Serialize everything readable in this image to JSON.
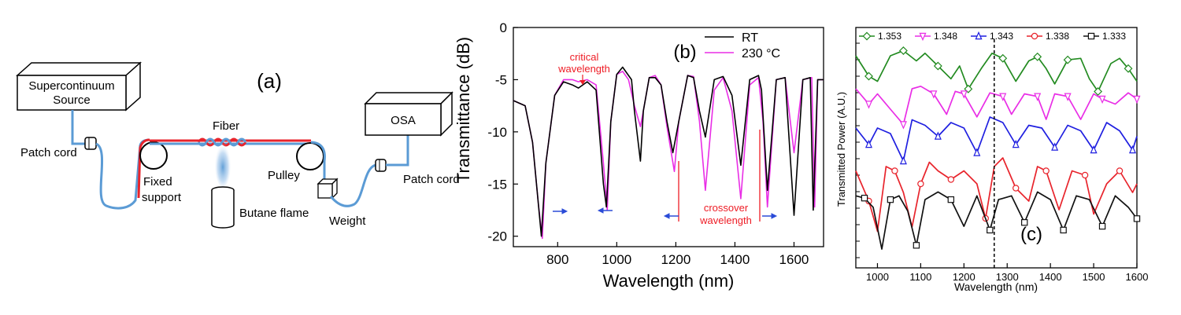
{
  "panel_a": {
    "panel_label": "(a)",
    "source_label_line1": "Supercontinuum",
    "source_label_line2": "Source",
    "patch_cord_left": "Patch cord",
    "fiber_label": "Fiber",
    "fixed_support_line1": "Fixed",
    "fixed_support_line2": "support",
    "flame_label": "Butane flame",
    "pulley_label": "Pulley",
    "weight_label": "Weight",
    "osa_label": "OSA",
    "patch_cord_right": "Patch cord",
    "colors": {
      "fiber_blue": "#5b9bd5",
      "fiber_red": "#e8242c"
    }
  },
  "panel_b": {
    "panel_label": "(b)",
    "annotation_critical_line1": "critical",
    "annotation_critical_line2": "wavelength",
    "annotation_crossover_line1": "crossover",
    "annotation_crossover_line2": "wavelength",
    "annotation_color": "#ee1c25",
    "arrow_color": "#2a4bd7"
  },
  "panel_c": {
    "panel_label": "(c)"
  },
  "chart_data": [
    {
      "type": "line",
      "panel": "b",
      "xlabel": "Wavelength (nm)",
      "ylabel": "Transmittance (dB)",
      "xlim": [
        650,
        1700
      ],
      "ylim": [
        -21,
        0
      ],
      "x_ticks": [
        "800",
        "1000",
        "1200",
        "1400",
        "1600"
      ],
      "x_tick_values": [
        800,
        1000,
        1200,
        1400,
        1600
      ],
      "y_ticks": [
        "0",
        "-5",
        "-10",
        "-15",
        "-20"
      ],
      "y_tick_values": [
        0,
        -5,
        -10,
        -15,
        -20
      ],
      "legend_position": "top-right",
      "series": [
        {
          "name": "RT",
          "color": "#000000",
          "x": [
            650,
            690,
            715,
            735,
            745,
            760,
            790,
            820,
            850,
            870,
            900,
            930,
            955,
            965,
            980,
            1000,
            1020,
            1050,
            1060,
            1080,
            1090,
            1110,
            1130,
            1150,
            1170,
            1190,
            1210,
            1240,
            1260,
            1280,
            1300,
            1330,
            1360,
            1390,
            1420,
            1450,
            1480,
            1490,
            1510,
            1540,
            1570,
            1600,
            1630,
            1655,
            1665,
            1680,
            1700
          ],
          "y": [
            -7,
            -7.5,
            -11,
            -17,
            -20,
            -13,
            -6.5,
            -5.2,
            -5.5,
            -5.8,
            -5.2,
            -6,
            -15,
            -17.2,
            -9,
            -4.5,
            -3.8,
            -5,
            -8,
            -12.8,
            -8,
            -4.8,
            -4.8,
            -5.5,
            -9,
            -12,
            -9,
            -4.6,
            -4.8,
            -8,
            -10.5,
            -5,
            -4.7,
            -6.5,
            -13.2,
            -5,
            -4.6,
            -6,
            -15.6,
            -5,
            -4.8,
            -18,
            -5,
            -4.8,
            -17.5,
            -5,
            -5
          ]
        },
        {
          "name": "230 °C",
          "color": "#e92ee6",
          "x": [
            650,
            690,
            715,
            735,
            748,
            760,
            790,
            820,
            850,
            870,
            900,
            930,
            955,
            968,
            980,
            1000,
            1020,
            1040,
            1060,
            1080,
            1090,
            1110,
            1130,
            1150,
            1170,
            1195,
            1210,
            1240,
            1260,
            1280,
            1300,
            1330,
            1360,
            1390,
            1420,
            1450,
            1480,
            1495,
            1510,
            1540,
            1570,
            1600,
            1630,
            1660,
            1670,
            1680,
            1700
          ],
          "y": [
            -7,
            -7.5,
            -11,
            -17,
            -20.2,
            -13,
            -6.5,
            -5,
            -5,
            -5.2,
            -5,
            -5.5,
            -13,
            -17.5,
            -9,
            -4.5,
            -4.2,
            -5,
            -7.5,
            -9.5,
            -8,
            -4.8,
            -4.6,
            -5.5,
            -9.5,
            -13.8,
            -9,
            -4.6,
            -4.7,
            -9,
            -15.6,
            -6,
            -4.8,
            -8,
            -16.4,
            -5.5,
            -4.8,
            -9,
            -17.2,
            -5,
            -4.8,
            -12,
            -5,
            -4.8,
            -17.2,
            -5,
            -5
          ]
        }
      ]
    },
    {
      "type": "line",
      "panel": "c",
      "xlabel": "Wavelength (nm)",
      "ylabel": "Transmitted Power (A.U.)",
      "xlim": [
        950,
        1600
      ],
      "x_ticks": [
        "1000",
        "1100",
        "1200",
        "1300",
        "1400",
        "1500",
        "1600"
      ],
      "x_tick_values": [
        1000,
        1100,
        1200,
        1300,
        1400,
        1500,
        1600
      ],
      "dashed_vline_x": 1270,
      "legend_position": "top",
      "series": [
        {
          "name": "1.353",
          "color": "#238b21",
          "marker": "diamond",
          "x": [
            950,
            980,
            1000,
            1030,
            1060,
            1090,
            1110,
            1140,
            1170,
            1190,
            1210,
            1240,
            1265,
            1290,
            1320,
            1350,
            1370,
            1390,
            1410,
            1440,
            1470,
            1490,
            1510,
            1540,
            1560,
            1580,
            1600
          ],
          "y": [
            0.8,
            0.4,
            0.3,
            0.8,
            0.9,
            0.7,
            0.85,
            0.6,
            0.35,
            0.6,
            0.15,
            0.55,
            0.85,
            0.75,
            0.3,
            0.7,
            0.78,
            0.55,
            0.25,
            0.72,
            0.75,
            0.35,
            0.1,
            0.65,
            0.75,
            0.55,
            0.3
          ]
        },
        {
          "name": "1.348",
          "color": "#e92ee6",
          "marker": "triangle-down",
          "x": [
            950,
            980,
            1000,
            1030,
            1060,
            1080,
            1100,
            1130,
            1160,
            1180,
            1200,
            1230,
            1260,
            1290,
            1310,
            1340,
            1370,
            1390,
            1410,
            1440,
            1470,
            1500,
            1520,
            1550,
            1580,
            1600
          ],
          "y": [
            0.8,
            0.5,
            0.7,
            0.4,
            0.1,
            0.8,
            0.85,
            0.7,
            0.3,
            0.75,
            0.7,
            0.25,
            0.72,
            0.65,
            0.3,
            0.7,
            0.65,
            0.2,
            0.7,
            0.65,
            0.2,
            0.7,
            0.6,
            0.5,
            0.72,
            0.6
          ]
        },
        {
          "name": "1.343",
          "color": "#1f1fe0",
          "marker": "triangle-up",
          "x": [
            950,
            980,
            1000,
            1030,
            1060,
            1080,
            1110,
            1140,
            1170,
            1200,
            1230,
            1260,
            1290,
            1320,
            1350,
            1380,
            1410,
            1440,
            1470,
            1500,
            1530,
            1560,
            1590,
            1600
          ],
          "y": [
            0.7,
            0.4,
            0.7,
            0.6,
            0.1,
            0.85,
            0.75,
            0.55,
            0.8,
            0.7,
            0.25,
            0.9,
            0.8,
            0.4,
            0.75,
            0.7,
            0.35,
            0.75,
            0.65,
            0.3,
            0.8,
            0.65,
            0.3,
            0.55
          ]
        },
        {
          "name": "1.338",
          "color": "#e8242c",
          "marker": "circle",
          "x": [
            950,
            980,
            1000,
            1020,
            1040,
            1060,
            1080,
            1100,
            1120,
            1140,
            1170,
            1200,
            1230,
            1250,
            1270,
            1290,
            1320,
            1350,
            1370,
            1390,
            1420,
            1450,
            1480,
            1500,
            1530,
            1560,
            1590,
            1600
          ],
          "y": [
            0.75,
            0.4,
            0.05,
            0.8,
            0.75,
            0.5,
            0.1,
            0.6,
            0.85,
            0.75,
            0.65,
            0.75,
            0.6,
            0.2,
            0.8,
            0.9,
            0.55,
            0.4,
            0.8,
            0.75,
            0.3,
            0.75,
            0.7,
            0.25,
            0.6,
            0.75,
            0.5,
            0.6
          ]
        },
        {
          "name": "1.333",
          "color": "#111111",
          "marker": "square",
          "x": [
            950,
            970,
            990,
            1010,
            1030,
            1050,
            1070,
            1090,
            1110,
            1140,
            1170,
            1200,
            1230,
            1260,
            1280,
            1310,
            1340,
            1370,
            1400,
            1430,
            1460,
            1490,
            1520,
            1550,
            1580,
            1600
          ],
          "y": [
            0.75,
            0.72,
            0.6,
            0.05,
            0.7,
            0.75,
            0.55,
            0.1,
            0.7,
            0.8,
            0.7,
            0.35,
            0.75,
            0.3,
            0.7,
            0.75,
            0.4,
            0.8,
            0.7,
            0.3,
            0.75,
            0.7,
            0.35,
            0.75,
            0.6,
            0.45
          ]
        }
      ]
    }
  ]
}
